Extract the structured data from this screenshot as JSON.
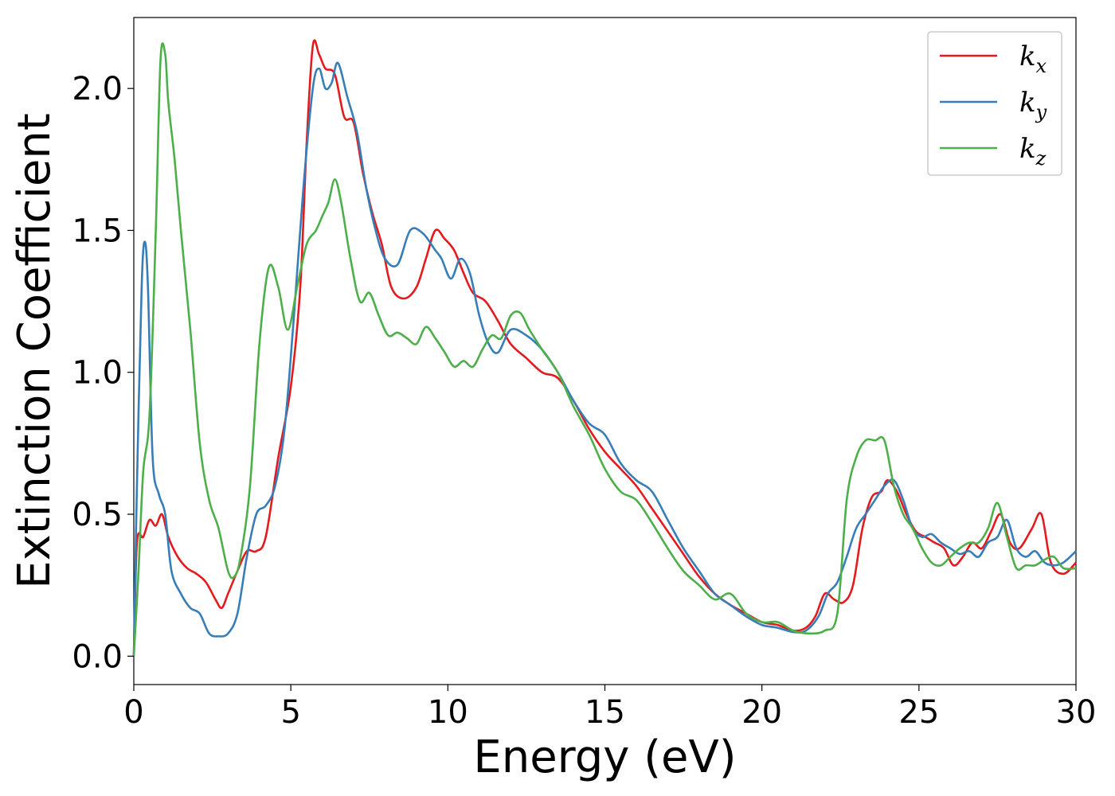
{
  "chart_data": {
    "type": "line",
    "xlabel": "Energy (eV)",
    "ylabel": "Extinction Coefficient",
    "xlim": [
      0,
      30
    ],
    "ylim": [
      -0.1,
      2.25
    ],
    "xticks": [
      0,
      5,
      10,
      15,
      20,
      25,
      30
    ],
    "xtick_labels": [
      "0",
      "5",
      "10",
      "15",
      "20",
      "25",
      "30"
    ],
    "yticks": [
      0.0,
      0.5,
      1.0,
      1.5,
      2.0
    ],
    "ytick_labels": [
      "0.0",
      "0.5",
      "1.0",
      "1.5",
      "2.0"
    ],
    "grid": false,
    "legend_position": "top-right",
    "series": [
      {
        "name": "k",
        "subscript": "x",
        "color": "#e41a1c",
        "x": [
          0,
          0.1,
          0.3,
          0.5,
          0.7,
          0.9,
          1.1,
          1.4,
          1.7,
          2.0,
          2.3,
          2.6,
          2.8,
          3.0,
          3.3,
          3.6,
          3.9,
          4.2,
          4.6,
          5.0,
          5.3,
          5.5,
          5.7,
          5.9,
          6.1,
          6.4,
          6.7,
          7.0,
          7.3,
          7.6,
          7.9,
          8.2,
          8.6,
          9.0,
          9.3,
          9.6,
          9.9,
          10.2,
          10.5,
          10.8,
          11.2,
          11.6,
          12.0,
          12.5,
          13.0,
          13.5,
          14.0,
          14.5,
          15.0,
          15.5,
          16.0,
          16.5,
          17.0,
          17.5,
          18.0,
          18.5,
          19.0,
          19.5,
          20.0,
          20.5,
          21.0,
          21.4,
          21.7,
          22.0,
          22.3,
          22.6,
          22.9,
          23.2,
          23.5,
          23.8,
          24.0,
          24.3,
          24.6,
          24.9,
          25.2,
          25.5,
          25.8,
          26.1,
          26.4,
          26.7,
          27.0,
          27.3,
          27.6,
          27.9,
          28.2,
          28.6,
          28.9,
          29.2,
          29.6,
          30.0
        ],
        "y": [
          0.0,
          0.4,
          0.42,
          0.48,
          0.46,
          0.5,
          0.42,
          0.35,
          0.31,
          0.29,
          0.26,
          0.2,
          0.17,
          0.22,
          0.3,
          0.37,
          0.37,
          0.42,
          0.7,
          0.95,
          1.3,
          1.8,
          2.15,
          2.12,
          2.07,
          2.05,
          1.9,
          1.88,
          1.7,
          1.56,
          1.45,
          1.3,
          1.26,
          1.3,
          1.4,
          1.5,
          1.47,
          1.43,
          1.35,
          1.28,
          1.25,
          1.18,
          1.1,
          1.05,
          1.0,
          0.98,
          0.9,
          0.8,
          0.72,
          0.66,
          0.6,
          0.52,
          0.44,
          0.36,
          0.28,
          0.22,
          0.18,
          0.15,
          0.12,
          0.11,
          0.09,
          0.1,
          0.14,
          0.22,
          0.2,
          0.19,
          0.25,
          0.45,
          0.56,
          0.58,
          0.62,
          0.58,
          0.5,
          0.44,
          0.42,
          0.4,
          0.38,
          0.32,
          0.35,
          0.4,
          0.38,
          0.44,
          0.5,
          0.4,
          0.38,
          0.45,
          0.5,
          0.33,
          0.29,
          0.33
        ]
      },
      {
        "name": "k",
        "subscript": "y",
        "color": "#377eb8",
        "x": [
          0,
          0.1,
          0.25,
          0.35,
          0.45,
          0.6,
          0.8,
          1.0,
          1.2,
          1.5,
          1.8,
          2.1,
          2.4,
          2.7,
          3.0,
          3.3,
          3.6,
          3.9,
          4.2,
          4.5,
          4.8,
          5.1,
          5.4,
          5.7,
          5.9,
          6.1,
          6.3,
          6.5,
          6.8,
          7.1,
          7.4,
          7.7,
          8.0,
          8.4,
          8.8,
          9.2,
          9.6,
          9.8,
          10.1,
          10.4,
          10.7,
          11.0,
          11.3,
          11.6,
          12.0,
          12.5,
          13.0,
          13.5,
          14.0,
          14.5,
          15.0,
          15.5,
          16.0,
          16.5,
          17.0,
          17.5,
          18.0,
          18.5,
          19.0,
          19.5,
          20.0,
          20.5,
          21.0,
          21.4,
          21.8,
          22.1,
          22.4,
          22.7,
          23.0,
          23.3,
          23.6,
          23.9,
          24.2,
          24.5,
          24.8,
          25.1,
          25.4,
          25.7,
          26.0,
          26.3,
          26.6,
          26.9,
          27.2,
          27.5,
          27.8,
          28.1,
          28.4,
          28.7,
          29.0,
          29.3,
          29.6,
          30.0
        ],
        "y": [
          0.0,
          0.6,
          1.3,
          1.46,
          1.3,
          0.7,
          0.57,
          0.5,
          0.3,
          0.22,
          0.17,
          0.15,
          0.08,
          0.07,
          0.08,
          0.15,
          0.35,
          0.5,
          0.53,
          0.6,
          0.8,
          1.2,
          1.65,
          2.0,
          2.07,
          2.0,
          2.02,
          2.09,
          1.97,
          1.85,
          1.65,
          1.5,
          1.4,
          1.38,
          1.5,
          1.49,
          1.43,
          1.4,
          1.33,
          1.4,
          1.35,
          1.2,
          1.1,
          1.07,
          1.15,
          1.13,
          1.08,
          1.0,
          0.9,
          0.82,
          0.78,
          0.68,
          0.62,
          0.58,
          0.48,
          0.38,
          0.3,
          0.22,
          0.18,
          0.14,
          0.11,
          0.1,
          0.085,
          0.09,
          0.14,
          0.22,
          0.26,
          0.35,
          0.45,
          0.5,
          0.55,
          0.6,
          0.62,
          0.55,
          0.45,
          0.42,
          0.43,
          0.4,
          0.38,
          0.36,
          0.37,
          0.35,
          0.4,
          0.42,
          0.48,
          0.38,
          0.35,
          0.37,
          0.33,
          0.32,
          0.33,
          0.37
        ]
      },
      {
        "name": "k",
        "subscript": "z",
        "color": "#4daf4a",
        "x": [
          0,
          0.15,
          0.3,
          0.5,
          0.7,
          0.85,
          1.0,
          1.1,
          1.3,
          1.5,
          1.8,
          2.1,
          2.4,
          2.7,
          3.0,
          3.2,
          3.4,
          3.7,
          4.0,
          4.3,
          4.6,
          4.9,
          5.2,
          5.5,
          5.8,
          6.0,
          6.2,
          6.4,
          6.6,
          6.9,
          7.2,
          7.5,
          7.8,
          8.1,
          8.4,
          8.7,
          9.0,
          9.3,
          9.6,
          9.9,
          10.2,
          10.5,
          10.8,
          11.1,
          11.4,
          11.7,
          12.0,
          12.3,
          12.6,
          13.0,
          13.5,
          14.0,
          14.5,
          15.0,
          15.5,
          16.0,
          16.5,
          17.0,
          17.5,
          18.0,
          18.5,
          19.0,
          19.5,
          20.0,
          20.5,
          21.0,
          21.5,
          22.0,
          22.4,
          22.7,
          23.0,
          23.3,
          23.6,
          23.9,
          24.2,
          24.5,
          24.8,
          25.1,
          25.4,
          25.7,
          26.0,
          26.3,
          26.6,
          26.9,
          27.2,
          27.5,
          27.8,
          28.1,
          28.4,
          28.7,
          29.0,
          29.3,
          29.6,
          30.0
        ],
        "y": [
          0.0,
          0.3,
          0.65,
          0.85,
          1.5,
          2.1,
          2.12,
          1.95,
          1.75,
          1.5,
          1.15,
          0.75,
          0.55,
          0.45,
          0.3,
          0.28,
          0.35,
          0.6,
          1.1,
          1.37,
          1.3,
          1.15,
          1.3,
          1.45,
          1.5,
          1.55,
          1.6,
          1.68,
          1.6,
          1.4,
          1.25,
          1.28,
          1.2,
          1.13,
          1.14,
          1.12,
          1.1,
          1.16,
          1.12,
          1.07,
          1.02,
          1.04,
          1.02,
          1.08,
          1.13,
          1.12,
          1.2,
          1.21,
          1.15,
          1.08,
          1.0,
          0.88,
          0.78,
          0.66,
          0.58,
          0.55,
          0.47,
          0.38,
          0.3,
          0.25,
          0.2,
          0.22,
          0.15,
          0.12,
          0.12,
          0.09,
          0.08,
          0.09,
          0.15,
          0.55,
          0.7,
          0.76,
          0.76,
          0.76,
          0.6,
          0.5,
          0.45,
          0.38,
          0.33,
          0.32,
          0.35,
          0.38,
          0.4,
          0.4,
          0.45,
          0.54,
          0.42,
          0.31,
          0.32,
          0.32,
          0.34,
          0.35,
          0.31,
          0.31
        ]
      }
    ]
  }
}
